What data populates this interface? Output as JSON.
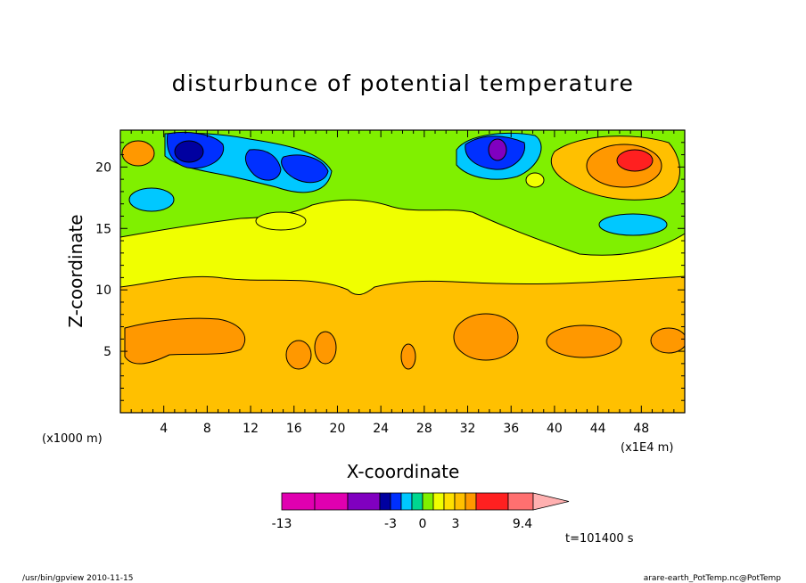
{
  "chart_data": {
    "type": "heatmap",
    "title": "disturbunce of potential temperature",
    "xlabel": "X-coordinate",
    "ylabel": "Z-coordinate",
    "x_unit_left": "(x1000 m)",
    "x_unit_right": "(x1E4 m)",
    "xlim": [
      0,
      52
    ],
    "ylim": [
      0,
      23
    ],
    "x_ticks": [
      4,
      8,
      12,
      16,
      20,
      24,
      28,
      32,
      36,
      40,
      44,
      48
    ],
    "y_ticks": [
      5,
      10,
      15,
      20
    ],
    "colorbar": {
      "colors": [
        "#e000b0",
        "#e000b0",
        "#8000c0",
        "#0000a0",
        "#0030ff",
        "#00c8ff",
        "#00d890",
        "#80f000",
        "#f0ff00",
        "#ffe000",
        "#ffc000",
        "#ff9800",
        "#ff2020",
        "#ff7070",
        "#ffb0b0"
      ],
      "tick_labels": [
        "-13",
        "-3",
        "0",
        "3",
        "9.4"
      ]
    },
    "time_label": "t=101400 s",
    "footer_left": "/usr/bin/gpview  2010-11-15",
    "footer_right": "arare-earth_PotTemp.nc@PotTemp"
  }
}
